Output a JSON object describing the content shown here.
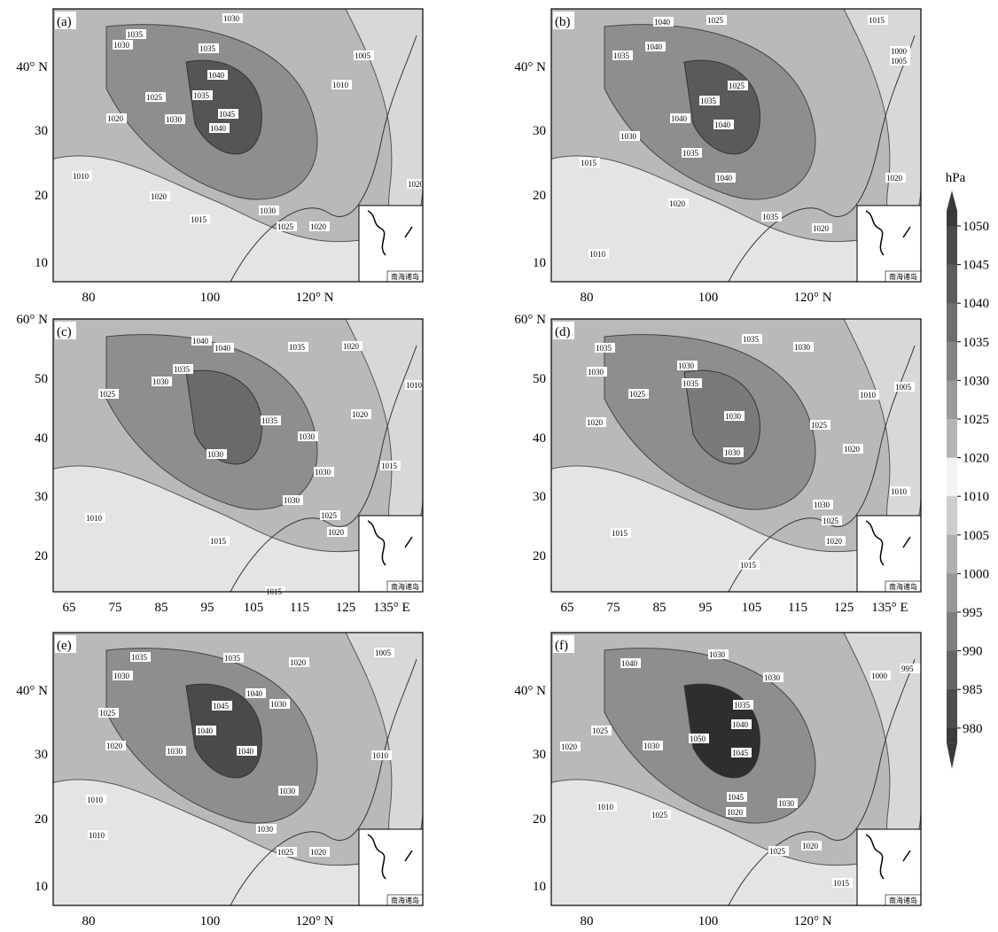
{
  "panels": [
    {
      "label": "(a)",
      "lat_ticks": [
        "40° N",
        "30",
        "20",
        "10"
      ],
      "lon_ticks": [
        "80",
        "100",
        "120° N"
      ],
      "contour_labels": [
        1030,
        1035,
        1030,
        1035,
        1040,
        1035,
        1045,
        1040,
        1025,
        1020,
        1030,
        1010,
        1020,
        1015,
        1030,
        1025,
        1020,
        1010,
        1005,
        1020
      ]
    },
    {
      "label": "(b)",
      "lat_ticks": [
        "40° N",
        "30",
        "20",
        "10"
      ],
      "lon_ticks": [
        "80",
        "100",
        "120° N"
      ],
      "contour_labels": [
        1040,
        1025,
        1040,
        1035,
        1015,
        1000,
        1005,
        1025,
        1035,
        1040,
        1040,
        1030,
        1035,
        1040,
        1020,
        1035,
        1010,
        1015,
        1020,
        1020
      ]
    },
    {
      "label": "(c)",
      "lat_ticks": [
        "60° N",
        "50",
        "40",
        "30",
        "20"
      ],
      "lon_ticks": [
        "65",
        "75",
        "85",
        "95",
        "105",
        "115",
        "125",
        "135° E"
      ],
      "contour_labels": [
        1040,
        1040,
        1035,
        1020,
        1035,
        1030,
        1025,
        1035,
        1030,
        1020,
        1010,
        1030,
        1030,
        1030,
        1025,
        1020,
        1010,
        1015,
        1015,
        1015
      ]
    },
    {
      "label": "(d)",
      "lat_ticks": [
        "60° N",
        "50",
        "40",
        "30",
        "20"
      ],
      "lon_ticks": [
        "65",
        "75",
        "85",
        "95",
        "105",
        "115",
        "125",
        "135° E"
      ],
      "contour_labels": [
        1035,
        1030,
        1035,
        1030,
        1030,
        1025,
        1035,
        1030,
        1030,
        1020,
        1010,
        1005,
        1025,
        1020,
        1015,
        1030,
        1025,
        1020,
        1015,
        1010
      ]
    },
    {
      "label": "(e)",
      "lat_ticks": [
        "40° N",
        "30",
        "20",
        "10"
      ],
      "lon_ticks": [
        "80",
        "100",
        "120° N"
      ],
      "contour_labels": [
        1035,
        1035,
        1020,
        1005,
        1030,
        1040,
        1045,
        1030,
        1025,
        1040,
        1030,
        1040,
        1020,
        1030,
        1010,
        1010,
        1030,
        1025,
        1020,
        1010
      ]
    },
    {
      "label": "(f)",
      "lat_ticks": [
        "40° N",
        "30",
        "20",
        "10"
      ],
      "lon_ticks": [
        "80",
        "100",
        "120° N"
      ],
      "contour_labels": [
        1040,
        1030,
        1030,
        1000,
        995,
        1035,
        1040,
        1030,
        1025,
        1050,
        1045,
        1020,
        1010,
        1045,
        1030,
        1020,
        1025,
        1025,
        1020,
        1015
      ]
    }
  ],
  "inset_label": "南海诸岛",
  "colorbar": {
    "unit": "hPa",
    "levels": [
      1050,
      1045,
      1040,
      1035,
      1030,
      1025,
      1020,
      1010,
      1005,
      1000,
      995,
      990,
      985,
      980
    ],
    "band_colors": [
      "#3a3a3a",
      "#4a4a4a",
      "#5c5c5c",
      "#6e6e6e",
      "#838383",
      "#9a9a9a",
      "#b4b4b4",
      "#f2f2f2",
      "#cdcdcd",
      "#b0b0b0",
      "#969696",
      "#7d7d7d",
      "#656565",
      "#4d4d4d",
      "#3a3a3a"
    ]
  }
}
